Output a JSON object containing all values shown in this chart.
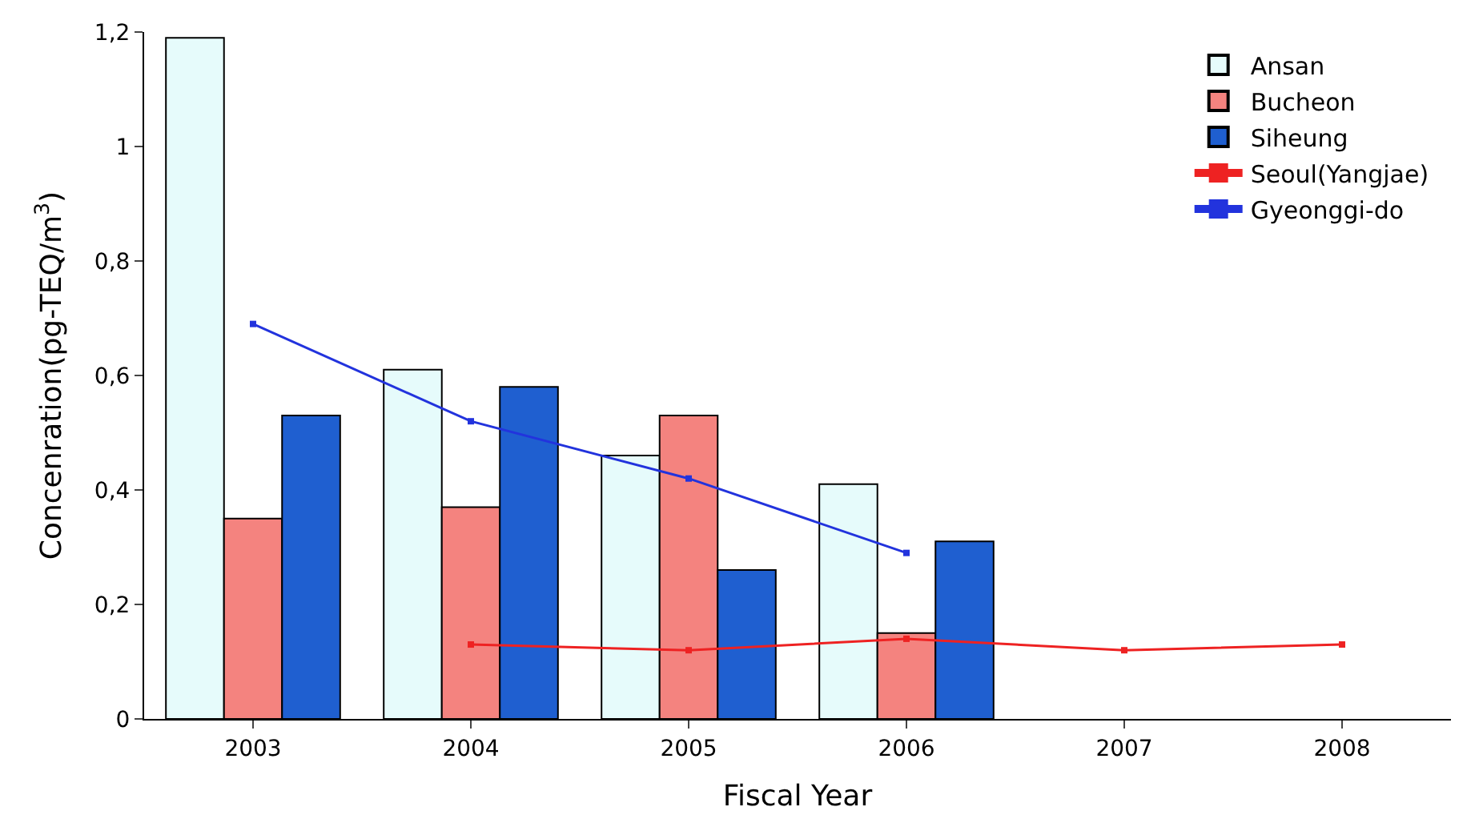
{
  "chart_data": {
    "type": "bar",
    "xlabel": "Fiscal Year",
    "ylabel": "Concenration(pg-TEQ/m$^{3}$)",
    "categories": [
      "2003",
      "2004",
      "2005",
      "2006",
      "2007",
      "2008"
    ],
    "series": [
      {
        "name": "Ansan",
        "color": "#e6fbfb",
        "values": [
          1.19,
          0.61,
          0.46,
          0.41,
          null,
          null
        ]
      },
      {
        "name": "Bucheon",
        "color": "#f4837f",
        "values": [
          0.35,
          0.37,
          0.53,
          0.15,
          null,
          null
        ]
      },
      {
        "name": "Siheung",
        "color": "#1f5fd0",
        "values": [
          0.53,
          0.58,
          0.26,
          0.31,
          null,
          null
        ]
      },
      {
        "name": "Seoul(Yangjae)",
        "type": "line",
        "color": "#ee2222",
        "values": [
          null,
          0.13,
          0.12,
          0.14,
          0.12,
          0.13
        ]
      },
      {
        "name": "Gyeonggi-do",
        "type": "line",
        "color": "#2233dd",
        "values": [
          0.69,
          0.52,
          0.42,
          0.29,
          null,
          null
        ]
      }
    ],
    "ylim": [
      0,
      1.2
    ],
    "yticks": [
      0,
      {
        "value": 0.2,
        "label": "0,2"
      },
      {
        "value": 0.4,
        "label": "0,4"
      },
      {
        "value": 0.6,
        "label": "0,6"
      },
      {
        "value": 0.8,
        "label": "0,8"
      },
      {
        "value": 1,
        "label": "1"
      },
      {
        "value": 1.2,
        "label": "1,2"
      }
    ],
    "legend": "top right",
    "marker": "square",
    "line_style": "solid"
  }
}
